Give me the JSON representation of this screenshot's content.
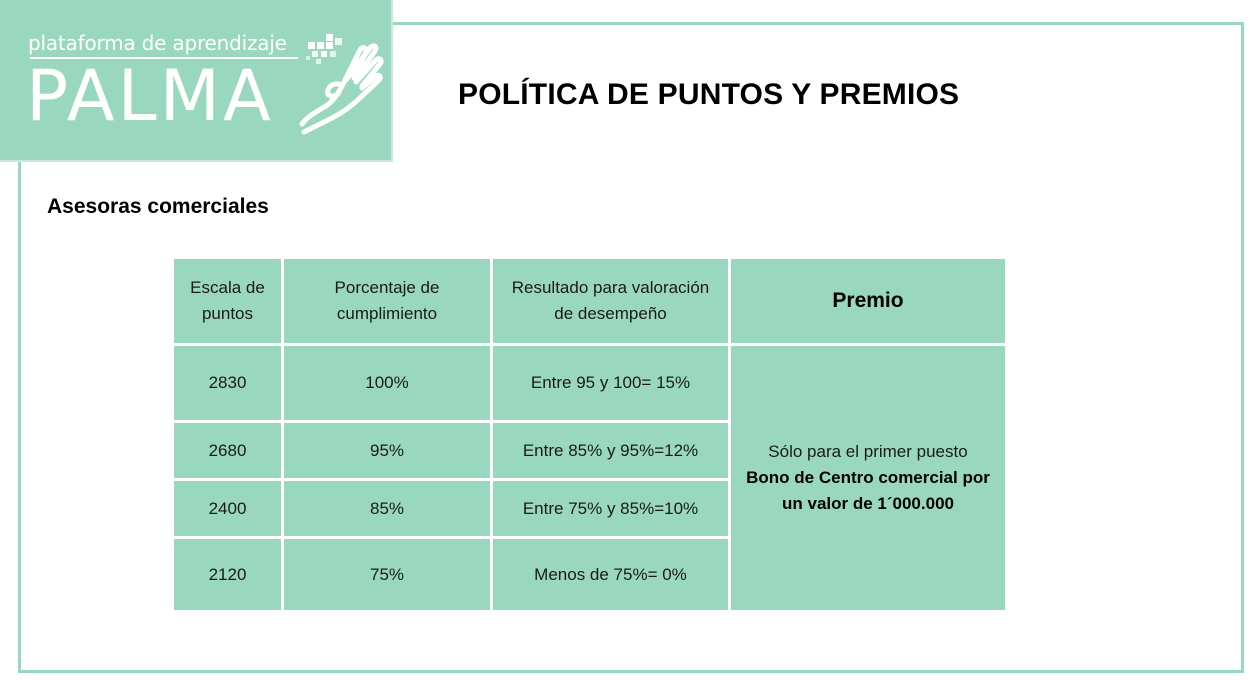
{
  "logo": {
    "tagline": "plataforma de aprendizaje",
    "name": "PALMA"
  },
  "title": "POLÍTICA DE PUNTOS Y PREMIOS",
  "section": "Asesoras comerciales",
  "table": {
    "headers": {
      "scale": [
        "Escala de",
        "puntos"
      ],
      "percent": [
        "Porcentaje de",
        "cumplimiento"
      ],
      "result": [
        "Resultado para valoración",
        "de desempeño"
      ],
      "prize": "Premio"
    },
    "rows": [
      {
        "points": "2830",
        "percent": "100%",
        "result": "Entre 95 y 100= 15%"
      },
      {
        "points": "2680",
        "percent": "95%",
        "result": "Entre 85% y 95%=12%"
      },
      {
        "points": "2400",
        "percent": "85%",
        "result": "Entre 75% y 85%=10%"
      },
      {
        "points": "2120",
        "percent": "75%",
        "result": "Menos de 75%= 0%"
      }
    ],
    "prize": {
      "line1": "Sólo para el primer puesto",
      "bold_line1": "Bono de Centro comercial por",
      "bold_line2": "un valor de 1´000.000"
    }
  },
  "colors": {
    "accent": "#99d8bf",
    "text": "#000000"
  }
}
